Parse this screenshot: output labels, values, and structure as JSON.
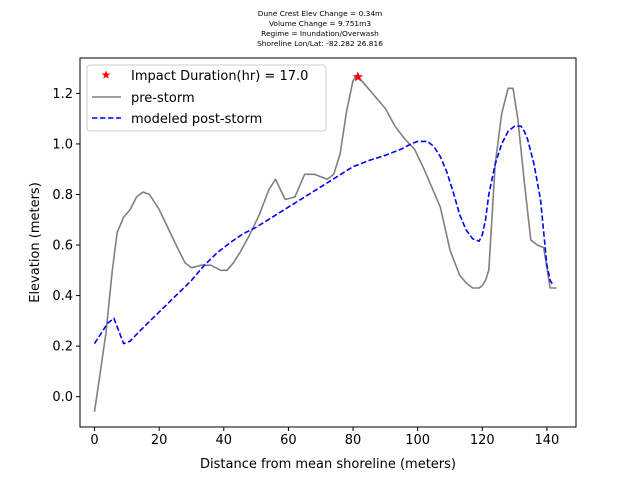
{
  "chart_data": {
    "type": "line",
    "title_lines": [
      "Dune Crest Elev Change = 0.34m",
      "Volume Change = 9.751m3",
      "Regime = Inundation/Overwash",
      "Shoreline Lon/Lat: -82.282 26.816"
    ],
    "xlabel": "Distance from mean shoreline (meters)",
    "ylabel": "Elevation (meters)",
    "xlim": [
      -4.5,
      149
    ],
    "ylim": [
      -0.12,
      1.34
    ],
    "xticks": [
      0,
      20,
      40,
      60,
      80,
      100,
      120,
      140
    ],
    "yticks": [
      0.0,
      0.2,
      0.4,
      0.6,
      0.8,
      1.0,
      1.2
    ],
    "legend_position": "upper-left",
    "series": [
      {
        "name": "pre-storm",
        "color": "#808080",
        "style": "solid",
        "x": [
          0,
          3.5,
          5.5,
          7,
          9,
          11,
          13,
          15,
          17,
          20,
          23,
          26,
          28,
          30,
          33,
          36,
          39,
          41,
          43,
          45,
          48,
          51,
          54,
          56,
          59,
          62,
          65,
          68,
          70,
          72,
          74,
          76,
          78,
          80,
          81,
          82,
          84,
          86,
          88,
          90,
          93,
          96,
          99,
          102,
          104,
          107,
          110,
          113,
          115,
          116,
          117,
          118,
          119,
          120,
          121,
          122,
          124,
          126,
          128,
          129.5,
          131,
          133,
          135,
          137,
          139,
          141,
          143
        ],
        "y": [
          -0.06,
          0.25,
          0.5,
          0.65,
          0.71,
          0.74,
          0.79,
          0.81,
          0.8,
          0.74,
          0.66,
          0.58,
          0.53,
          0.51,
          0.52,
          0.52,
          0.5,
          0.5,
          0.53,
          0.57,
          0.64,
          0.72,
          0.82,
          0.86,
          0.78,
          0.79,
          0.88,
          0.88,
          0.87,
          0.86,
          0.88,
          0.96,
          1.13,
          1.25,
          1.27,
          1.26,
          1.23,
          1.2,
          1.17,
          1.14,
          1.07,
          1.02,
          0.98,
          0.9,
          0.84,
          0.75,
          0.58,
          0.48,
          0.45,
          0.44,
          0.43,
          0.43,
          0.43,
          0.44,
          0.46,
          0.5,
          0.92,
          1.12,
          1.22,
          1.22,
          1.1,
          0.85,
          0.62,
          0.6,
          0.59,
          0.43,
          0.43
        ]
      },
      {
        "name": "modeled post-storm",
        "color": "#0000ff",
        "style": "dashed",
        "x": [
          0,
          2,
          4,
          6,
          7.5,
          9,
          11,
          14,
          18,
          22,
          26,
          30,
          34,
          38,
          42,
          46,
          50,
          55,
          60,
          65,
          70,
          75,
          80,
          85,
          90,
          95,
          98,
          100,
          103,
          105,
          107,
          109,
          111,
          113,
          115,
          117,
          119,
          120,
          121,
          122,
          124,
          126,
          128,
          130,
          132,
          133,
          134,
          136,
          138,
          139,
          140,
          141,
          142
        ],
        "y": [
          0.21,
          0.25,
          0.29,
          0.31,
          0.26,
          0.21,
          0.22,
          0.26,
          0.31,
          0.36,
          0.41,
          0.46,
          0.52,
          0.57,
          0.61,
          0.645,
          0.67,
          0.71,
          0.75,
          0.79,
          0.83,
          0.87,
          0.91,
          0.935,
          0.955,
          0.98,
          1.0,
          1.01,
          1.01,
          0.99,
          0.95,
          0.89,
          0.81,
          0.72,
          0.66,
          0.625,
          0.615,
          0.64,
          0.7,
          0.8,
          0.92,
          1.0,
          1.05,
          1.07,
          1.07,
          1.05,
          1.02,
          0.92,
          0.78,
          0.65,
          0.52,
          0.46,
          0.44
        ]
      }
    ],
    "marker": {
      "name": "Impact Duration(hr) = 17.0",
      "color": "#ff0000",
      "symbol": "star",
      "x": 81.5,
      "y": 1.265
    }
  }
}
